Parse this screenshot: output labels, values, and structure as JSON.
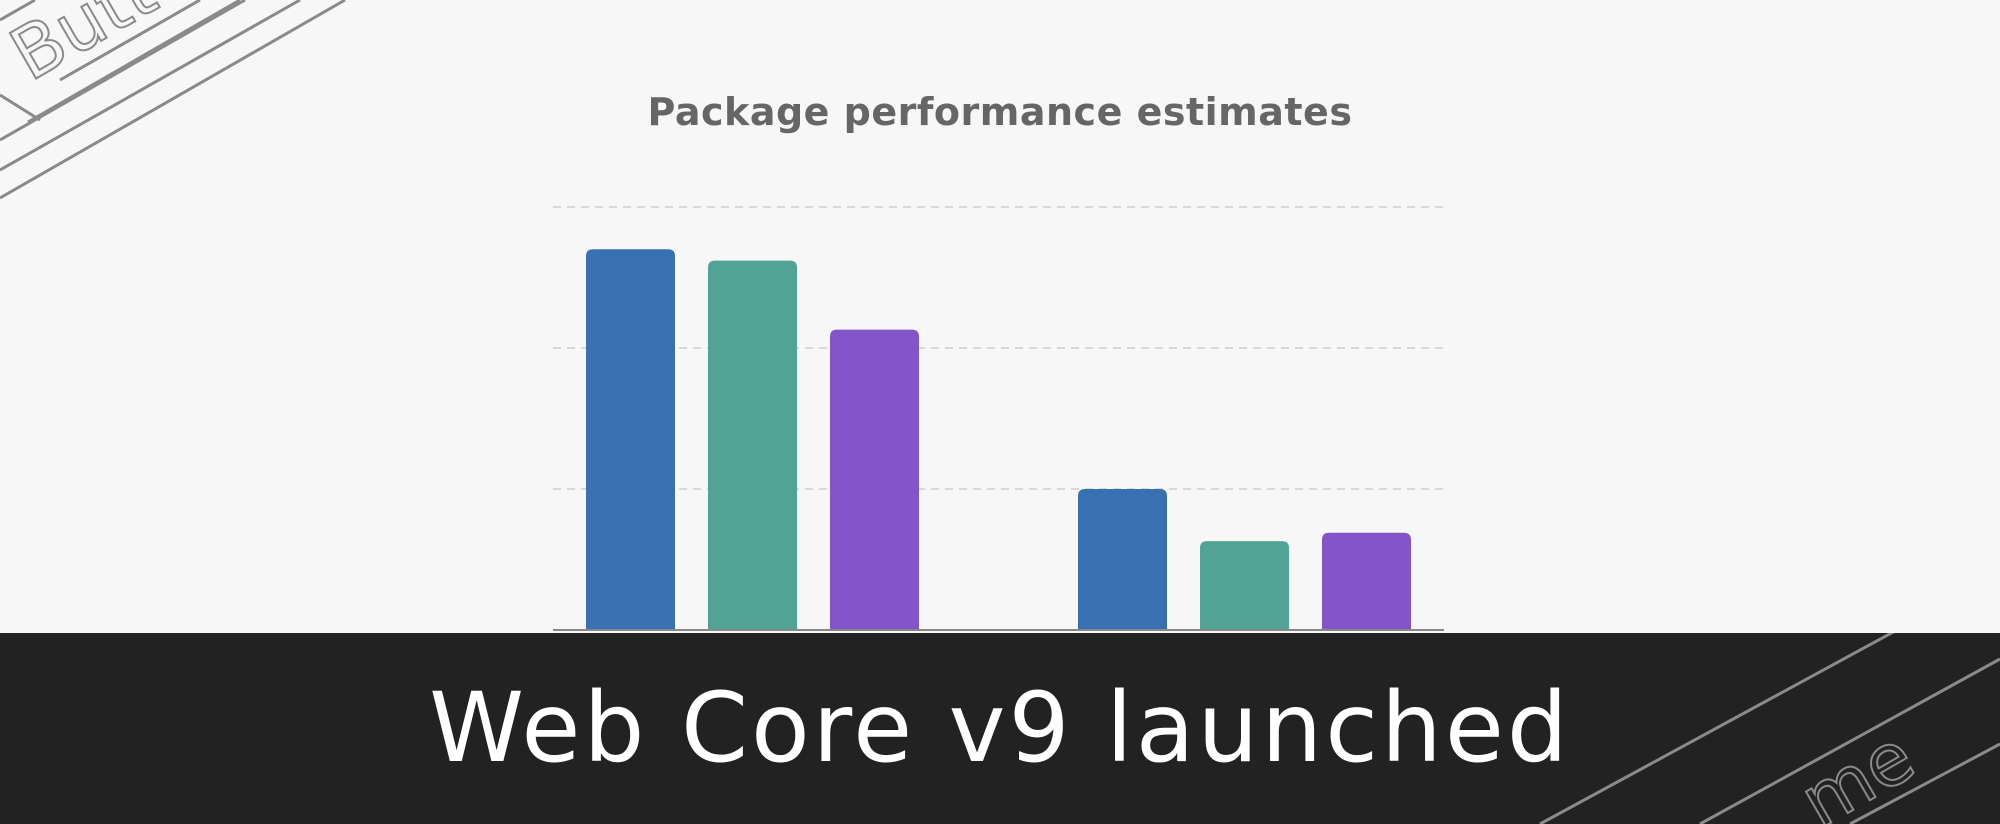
{
  "chart_data": {
    "type": "bar",
    "title": "Package performance estimates",
    "categories": [
      "",
      ""
    ],
    "series": [
      {
        "color": "#3870b2",
        "values": [
          2.7,
          1.0
        ]
      },
      {
        "color": "#50a395",
        "values": [
          2.62,
          0.63
        ]
      },
      {
        "color": "#8455c8",
        "values": [
          2.13,
          0.69
        ]
      }
    ],
    "ylim": [
      0,
      3
    ],
    "grid": true,
    "legend": "none",
    "xlabel": "",
    "ylabel": ""
  },
  "banner": {
    "title": "Web Core v9 launched",
    "background": "#222222",
    "text_color": "#ffffff"
  },
  "decorations": {
    "top_left_word": "Butto",
    "bottom_right_word": "me"
  }
}
